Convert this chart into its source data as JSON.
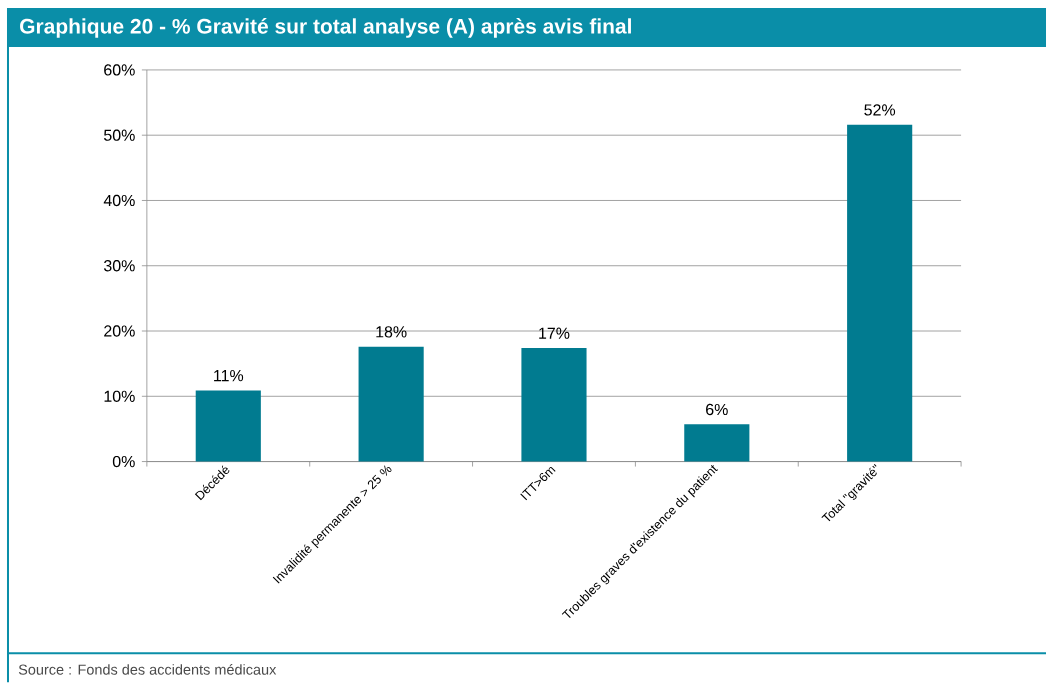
{
  "chart_data": {
    "type": "bar",
    "title": "Graphique 20 - % Gravité sur total analyse (A) après avis final",
    "annotations": [
      "Source : Fonds des accidents médicaux"
    ],
    "categories": [
      "Décédé",
      "Invalidité permanente > 25 %",
      "ITT>6m",
      "Troubles graves d'existence du patient",
      "Total \"gravité\""
    ],
    "values": [
      10.9,
      17.6,
      17.4,
      5.7,
      51.6
    ],
    "value_labels": [
      "11%",
      "18%",
      "17%",
      "6%",
      "52%"
    ],
    "color": "#017b90",
    "ylim": [
      0,
      60
    ],
    "yticks": [
      {
        "value": 0,
        "label": "0%"
      },
      {
        "value": 10,
        "label": "10%"
      },
      {
        "value": 20,
        "label": "20%"
      },
      {
        "value": 30,
        "label": "30%"
      },
      {
        "value": 40,
        "label": "40%"
      },
      {
        "value": 50,
        "label": "50%"
      },
      {
        "value": 60,
        "label": "60%"
      }
    ],
    "grid": "y"
  }
}
